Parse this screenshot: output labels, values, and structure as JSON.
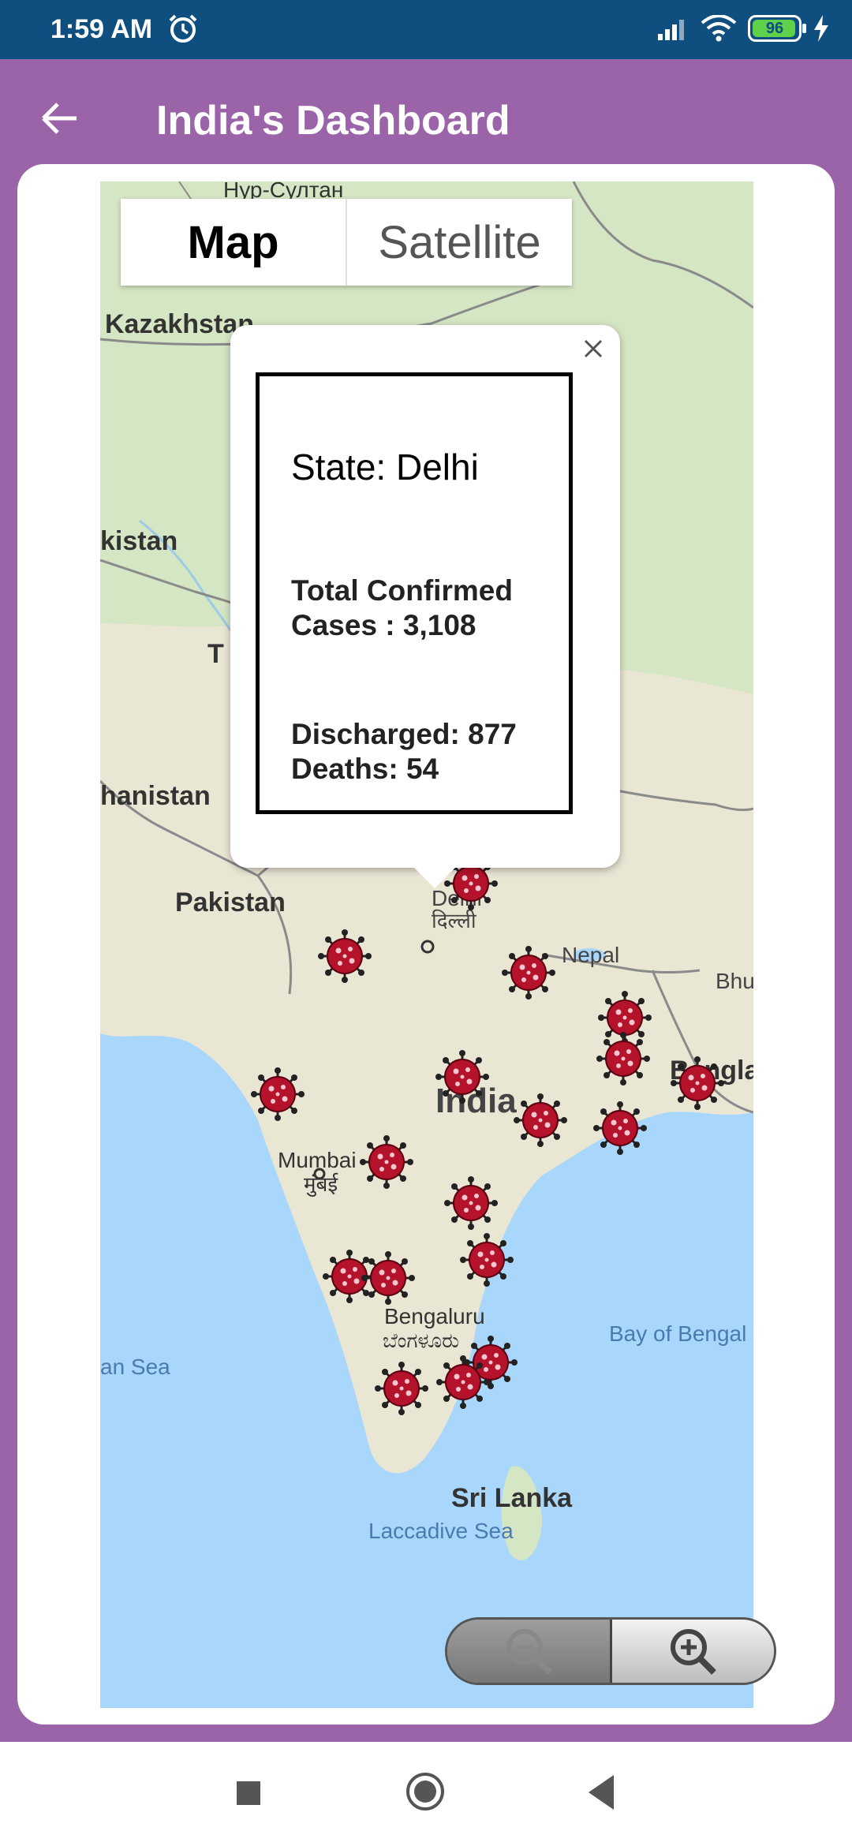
{
  "status_bar": {
    "time": "1:59 AM",
    "battery_level": "96",
    "icons": [
      "alarm-icon",
      "signal-icon",
      "wifi-icon",
      "battery-icon",
      "charging-icon"
    ]
  },
  "app_bar": {
    "title": "India's Dashboard",
    "back_icon": "arrow-left-icon"
  },
  "map": {
    "type_options": [
      "Map",
      "Satellite"
    ],
    "selected_type": "Map",
    "place_labels": [
      "Нур-Султан",
      "Kazakhstan",
      "kistan",
      "T",
      "hanistan",
      "Pakistan",
      "Delhi",
      "दिल्ली",
      "Nepal",
      "Bhu",
      "Bangla",
      "India",
      "Mumbai",
      "मुंबई",
      "Bengaluru",
      "ಬೆಂಗಳೂರು",
      "Bay of Bengal",
      "an Sea",
      "Sri Lanka",
      "Laccadive Sea"
    ],
    "marker_icon": "virus-icon",
    "zoom_out_icon": "zoom-out-icon",
    "zoom_in_icon": "zoom-in-icon"
  },
  "info_window": {
    "state": "State: Delhi",
    "total_confirmed": "Total Confirmed Cases : 3,108",
    "discharged": "Discharged: 877",
    "deaths": "Deaths: 54",
    "close_icon": "close-icon"
  },
  "nav_bar": {
    "icons": [
      "recents-square-icon",
      "home-circle-icon",
      "back-triangle-icon"
    ]
  }
}
